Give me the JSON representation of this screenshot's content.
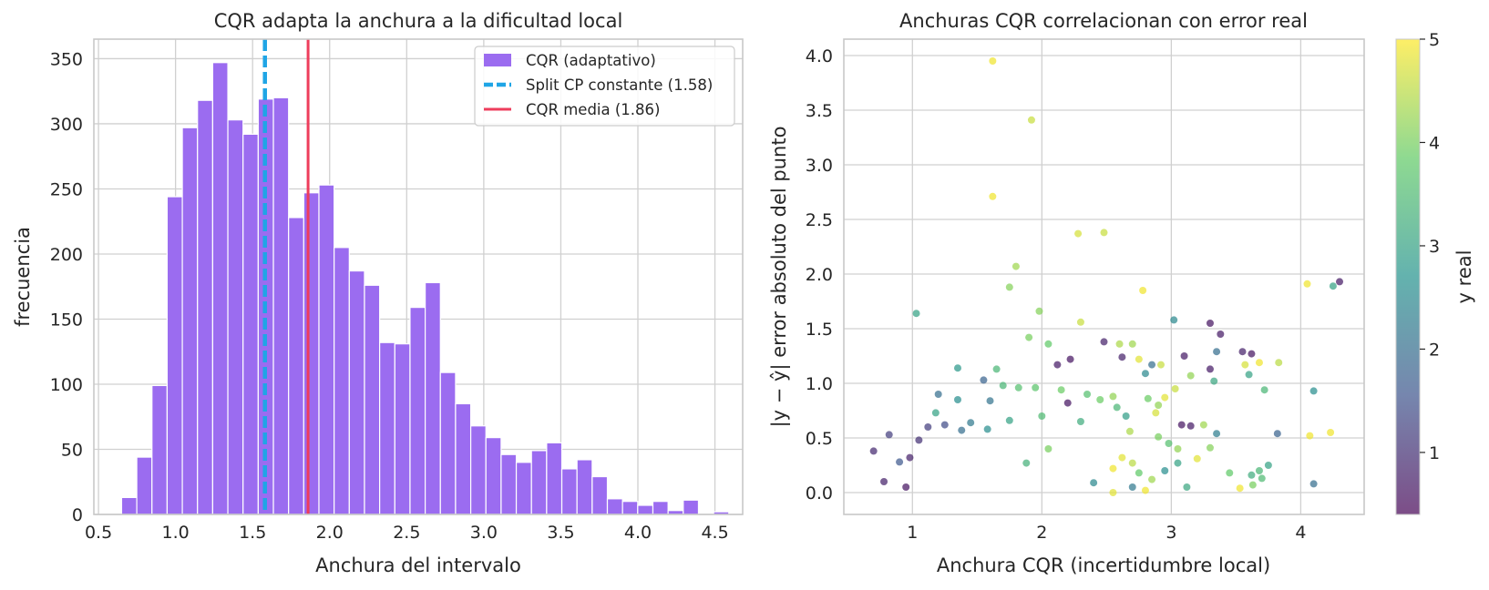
{
  "figure_colors": {
    "grid": "#d0d0d0",
    "spine": "#c8c8c8",
    "bar": "#9b6cf0",
    "split_line": "#1fa5e6",
    "cqr_line": "#ee3d5c"
  },
  "colorbar": {
    "label": "y real",
    "ticks": [
      1,
      2,
      3,
      4,
      5
    ],
    "min": 0.4,
    "max": 5.0,
    "colormap": "viridis"
  },
  "chart_data": [
    {
      "type": "bar",
      "title": "CQR adapta la anchura a la dificultad local",
      "xlabel": "Anchura del intervalo",
      "ylabel": "frecuencia",
      "xlim": [
        0.47,
        4.68
      ],
      "ylim": [
        0,
        365
      ],
      "xticks": [
        0.5,
        1.0,
        1.5,
        2.0,
        2.5,
        3.0,
        3.5,
        4.0,
        4.5
      ],
      "yticks": [
        0,
        50,
        100,
        150,
        200,
        250,
        300,
        350
      ],
      "grid": true,
      "bin_start": 0.65,
      "bin_width": 0.0985,
      "values": [
        13,
        44,
        99,
        244,
        297,
        318,
        347,
        303,
        292,
        319,
        320,
        228,
        247,
        253,
        205,
        187,
        176,
        132,
        131,
        159,
        178,
        109,
        85,
        68,
        59,
        46,
        40,
        49,
        55,
        35,
        42,
        29,
        12,
        10,
        7,
        10,
        3,
        11,
        0,
        2
      ],
      "vlines": [
        {
          "x": 1.58,
          "style": "dashed",
          "color": "#1fa5e6"
        },
        {
          "x": 1.86,
          "style": "solid",
          "color": "#ee3d5c"
        }
      ],
      "legend": {
        "position": "top-right",
        "entries": [
          "CQR (adaptativo)",
          "Split CP constante (1.58)",
          "CQR media (1.86)"
        ]
      }
    },
    {
      "type": "scatter",
      "title": "Anchuras CQR correlacionan con error real",
      "xlabel": "Anchura CQR (incertidumbre local)",
      "ylabel": "|y − ŷ| error absoluto del punto",
      "xlim": [
        0.47,
        4.49
      ],
      "ylim": [
        -0.2,
        4.15
      ],
      "xticks": [
        1,
        2,
        3,
        4
      ],
      "yticks": [
        0.0,
        0.5,
        1.0,
        1.5,
        2.0,
        2.5,
        3.0,
        3.5,
        4.0
      ],
      "yticklabels": [
        "0.0",
        "0.5",
        "1.0",
        "1.5",
        "2.0",
        "2.5",
        "3.0",
        "3.5",
        "4.0"
      ],
      "grid": true,
      "color_by": "y real",
      "points": [
        [
          1.62,
          3.95,
          4.9
        ],
        [
          1.92,
          3.41,
          4.6
        ],
        [
          1.62,
          2.71,
          4.9
        ],
        [
          2.28,
          2.37,
          4.7
        ],
        [
          2.48,
          2.38,
          4.6
        ],
        [
          1.8,
          2.07,
          4.3
        ],
        [
          1.75,
          1.88,
          4.1
        ],
        [
          2.78,
          1.85,
          4.9
        ],
        [
          4.05,
          1.91,
          4.9
        ],
        [
          4.3,
          1.93,
          0.7
        ],
        [
          4.25,
          1.89,
          3.0
        ],
        [
          1.03,
          1.64,
          3.0
        ],
        [
          1.98,
          1.66,
          4.1
        ],
        [
          3.02,
          1.58,
          2.5
        ],
        [
          3.3,
          1.55,
          0.6
        ],
        [
          3.38,
          1.45,
          0.7
        ],
        [
          2.3,
          1.56,
          4.6
        ],
        [
          2.6,
          1.36,
          4.4
        ],
        [
          2.48,
          1.38,
          0.8
        ],
        [
          2.7,
          1.36,
          4.3
        ],
        [
          1.9,
          1.42,
          4.0
        ],
        [
          2.05,
          1.36,
          3.8
        ],
        [
          1.35,
          1.14,
          2.8
        ],
        [
          1.65,
          1.13,
          3.4
        ],
        [
          3.1,
          1.25,
          0.7
        ],
        [
          3.35,
          1.29,
          2.0
        ],
        [
          3.55,
          1.29,
          0.8
        ],
        [
          3.62,
          1.27,
          0.6
        ],
        [
          3.68,
          1.19,
          4.9
        ],
        [
          3.83,
          1.19,
          4.5
        ],
        [
          3.57,
          1.17,
          4.7
        ],
        [
          3.3,
          1.13,
          0.7
        ],
        [
          3.33,
          1.02,
          3.1
        ],
        [
          3.6,
          1.08,
          3.0
        ],
        [
          3.72,
          0.94,
          3.4
        ],
        [
          4.1,
          0.93,
          2.6
        ],
        [
          3.15,
          1.07,
          4.2
        ],
        [
          2.85,
          1.17,
          2.0
        ],
        [
          2.8,
          1.09,
          2.5
        ],
        [
          2.92,
          1.17,
          4.6
        ],
        [
          3.03,
          0.95,
          4.6
        ],
        [
          2.95,
          0.87,
          4.8
        ],
        [
          2.9,
          0.8,
          4.2
        ],
        [
          3.08,
          0.62,
          0.6
        ],
        [
          3.15,
          0.61,
          0.7
        ],
        [
          3.25,
          0.62,
          4.3
        ],
        [
          3.35,
          0.54,
          2.3
        ],
        [
          3.82,
          0.54,
          1.8
        ],
        [
          4.07,
          0.52,
          4.9
        ],
        [
          4.23,
          0.55,
          4.9
        ],
        [
          3.3,
          0.41,
          4.1
        ],
        [
          3.45,
          0.18,
          3.8
        ],
        [
          3.53,
          0.04,
          4.9
        ],
        [
          3.62,
          0.16,
          3.2
        ],
        [
          3.68,
          0.2,
          3.4
        ],
        [
          3.75,
          0.25,
          3.0
        ],
        [
          3.63,
          0.07,
          4.0
        ],
        [
          3.7,
          0.13,
          3.5
        ],
        [
          4.1,
          0.08,
          2.0
        ],
        [
          3.12,
          0.05,
          3.1
        ],
        [
          3.05,
          0.27,
          3.0
        ],
        [
          3.2,
          0.31,
          4.8
        ],
        [
          2.8,
          0.02,
          4.9
        ],
        [
          2.7,
          0.05,
          2.2
        ],
        [
          2.55,
          0.0,
          4.8
        ],
        [
          2.4,
          0.09,
          2.5
        ],
        [
          2.05,
          0.4,
          4.0
        ],
        [
          1.88,
          0.27,
          3.3
        ],
        [
          1.82,
          0.96,
          3.6
        ],
        [
          1.6,
          0.84,
          2.1
        ],
        [
          1.35,
          0.85,
          2.6
        ],
        [
          1.2,
          0.9,
          2.0
        ],
        [
          1.18,
          0.73,
          3.0
        ],
        [
          1.05,
          0.48,
          1.0
        ],
        [
          0.9,
          0.28,
          1.6
        ],
        [
          0.82,
          0.53,
          1.2
        ],
        [
          0.7,
          0.38,
          0.9
        ],
        [
          0.78,
          0.1,
          0.8
        ],
        [
          0.95,
          0.05,
          0.6
        ],
        [
          2.12,
          1.17,
          0.7
        ],
        [
          2.22,
          1.22,
          0.6
        ],
        [
          2.62,
          1.24,
          0.8
        ],
        [
          2.75,
          1.22,
          4.8
        ],
        [
          1.55,
          1.03,
          1.8
        ],
        [
          1.7,
          0.98,
          3.4
        ],
        [
          1.95,
          0.96,
          3.7
        ],
        [
          2.15,
          0.94,
          3.9
        ],
        [
          2.35,
          0.9,
          3.6
        ],
        [
          2.55,
          0.88,
          4.2
        ],
        [
          2.45,
          0.85,
          3.9
        ],
        [
          2.2,
          0.82,
          0.6
        ],
        [
          2.58,
          0.78,
          3.4
        ],
        [
          2.82,
          0.86,
          3.9
        ],
        [
          2.88,
          0.73,
          4.7
        ],
        [
          2.65,
          0.7,
          2.9
        ],
        [
          1.25,
          0.62,
          1.4
        ],
        [
          1.45,
          0.64,
          2.2
        ],
        [
          1.75,
          0.66,
          3.0
        ],
        [
          2.0,
          0.7,
          3.5
        ],
        [
          2.3,
          0.65,
          3.2
        ],
        [
          2.68,
          0.56,
          4.4
        ],
        [
          2.9,
          0.51,
          4.0
        ],
        [
          2.98,
          0.45,
          3.6
        ],
        [
          3.05,
          0.4,
          4.2
        ],
        [
          2.62,
          0.32,
          4.8
        ],
        [
          2.7,
          0.27,
          4.5
        ],
        [
          2.55,
          0.22,
          4.9
        ],
        [
          2.75,
          0.18,
          3.8
        ],
        [
          2.85,
          0.12,
          4.3
        ],
        [
          2.95,
          0.2,
          2.6
        ],
        [
          1.58,
          0.58,
          2.6
        ],
        [
          1.38,
          0.57,
          2.0
        ],
        [
          1.12,
          0.6,
          1.2
        ],
        [
          0.98,
          0.32,
          0.8
        ]
      ]
    }
  ]
}
